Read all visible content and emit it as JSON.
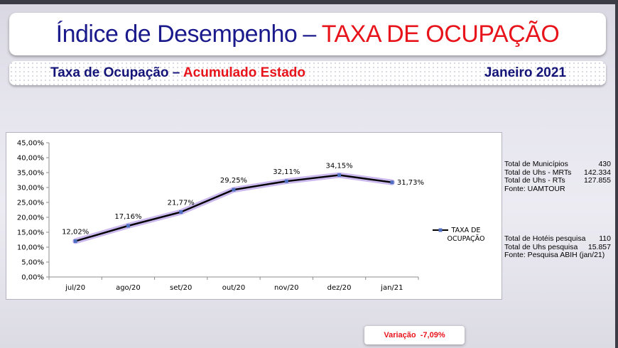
{
  "header": {
    "title_main": "Índice de Desempenho",
    "title_sep": "–",
    "title_accent": "TAXA DE OCUPAÇÃO"
  },
  "subheader": {
    "left_main": "Taxa de Ocupação",
    "left_sep": " – ",
    "left_accent": "Acumulado Estado",
    "right": "Janeiro 2021"
  },
  "chart_data": {
    "type": "line",
    "categories": [
      "jul/20",
      "ago/20",
      "set/20",
      "out/20",
      "nov/20",
      "dez/20",
      "jan/21"
    ],
    "series": [
      {
        "name": "TAXA DE OCUPAÇÃO",
        "values": [
          12.02,
          17.16,
          21.77,
          29.25,
          32.11,
          34.15,
          31.73
        ],
        "labels": [
          "12,02%",
          "17,16%",
          "21,77%",
          "29,25%",
          "32,11%",
          "34,15%",
          "31,73%"
        ]
      }
    ],
    "ylim": [
      0,
      45
    ],
    "yticks": [
      "0,00%",
      "5,00%",
      "10,00%",
      "15,00%",
      "20,00%",
      "25,00%",
      "30,00%",
      "35,00%",
      "40,00%",
      "45,00%"
    ],
    "legend": "right",
    "legend_lines": [
      "TAXA DE",
      "OCUPAÇÃO"
    ],
    "grid": false,
    "line_color": "#000000",
    "marker_color": "#4f6fc0",
    "glow_color": "#b9a2e8"
  },
  "info_block_1": [
    {
      "label": "Total de Municípios",
      "value": "430"
    },
    {
      "label": "Total de Uhs - MRTs",
      "value": "142.334"
    },
    {
      "label": "Total de Uhs - RTs",
      "value": "127.855"
    },
    {
      "label": "Fonte: UAMTOUR",
      "value": ""
    }
  ],
  "info_block_2": [
    {
      "label": "Total de Hotéis pesquisa",
      "value": "110"
    },
    {
      "label": "Total de Uhs pesquisa",
      "value": "15.857"
    },
    {
      "label": "Fonte: Pesquisa ABIH (jan/21)",
      "value": ""
    }
  ],
  "variation": {
    "text": "Variação  -7,09%"
  },
  "colors": {
    "title_blue": "#1a1a8c",
    "accent_red": "#e8141b"
  }
}
